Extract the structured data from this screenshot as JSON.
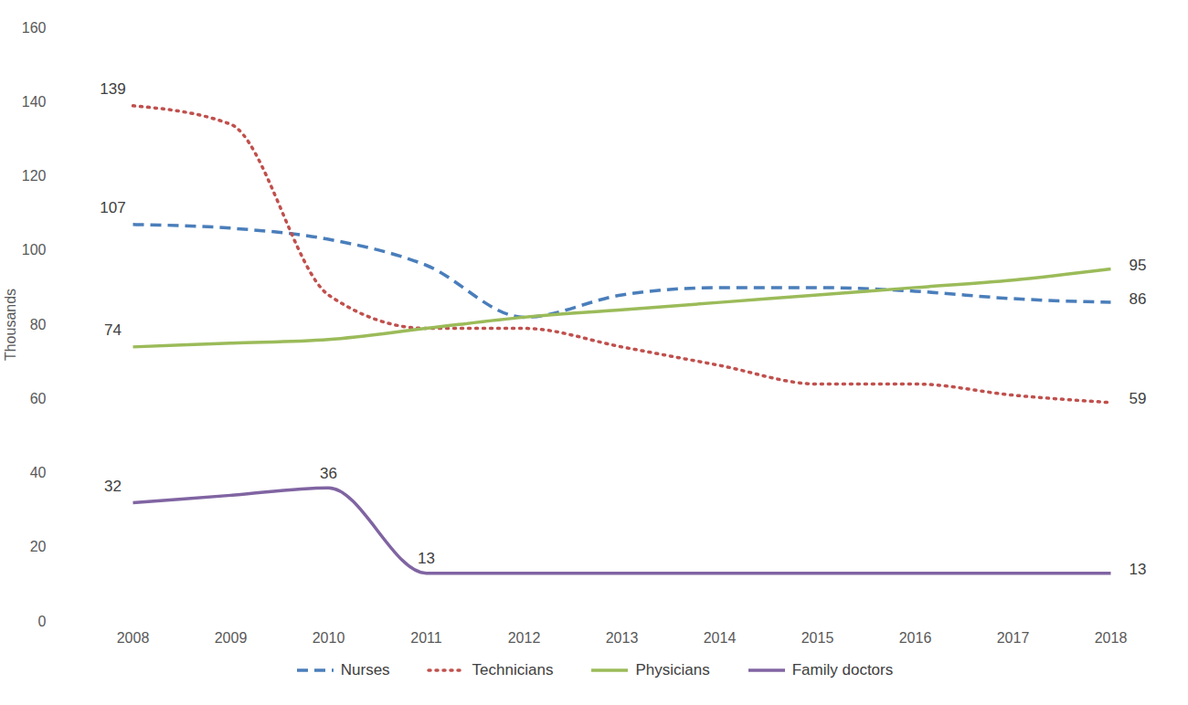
{
  "chart_data": {
    "type": "line",
    "y_label": "Thousands",
    "categories": [
      "2008",
      "2009",
      "2010",
      "2011",
      "2012",
      "2013",
      "2014",
      "2015",
      "2016",
      "2017",
      "2018"
    ],
    "ylim": [
      0,
      160
    ],
    "yticks": [
      0,
      20,
      40,
      60,
      80,
      100,
      120,
      140,
      160
    ],
    "grid": false,
    "legend": "bottom",
    "data_labels": true,
    "series": [
      {
        "name": "Nurses",
        "color": "#4a7ebb",
        "line_style": "dashed",
        "values": [
          107,
          106,
          103,
          96,
          82,
          88,
          90,
          90,
          89,
          87,
          86
        ],
        "value_labels": [
          "107",
          null,
          null,
          null,
          null,
          null,
          null,
          null,
          null,
          null,
          "86"
        ]
      },
      {
        "name": "Technicians",
        "color": "#c0504d",
        "line_style": "dotted",
        "values": [
          139,
          134,
          88,
          79,
          79,
          74,
          69,
          64,
          64,
          61,
          59
        ],
        "value_labels": [
          "139",
          null,
          null,
          null,
          null,
          null,
          null,
          null,
          null,
          null,
          "59"
        ]
      },
      {
        "name": "Physicians",
        "color": "#9bbb59",
        "line_style": "solid",
        "values": [
          74,
          75,
          76,
          79,
          82,
          84,
          86,
          88,
          90,
          92,
          95
        ],
        "value_labels": [
          "74",
          null,
          null,
          null,
          null,
          null,
          null,
          null,
          null,
          null,
          "95"
        ]
      },
      {
        "name": "Family doctors",
        "color": "#8064a2",
        "line_style": "solid",
        "values": [
          32,
          34,
          36,
          13,
          13,
          13,
          13,
          13,
          13,
          13,
          13
        ],
        "value_labels": [
          "32",
          null,
          "36",
          "13",
          null,
          null,
          null,
          null,
          null,
          null,
          "13"
        ]
      }
    ]
  }
}
